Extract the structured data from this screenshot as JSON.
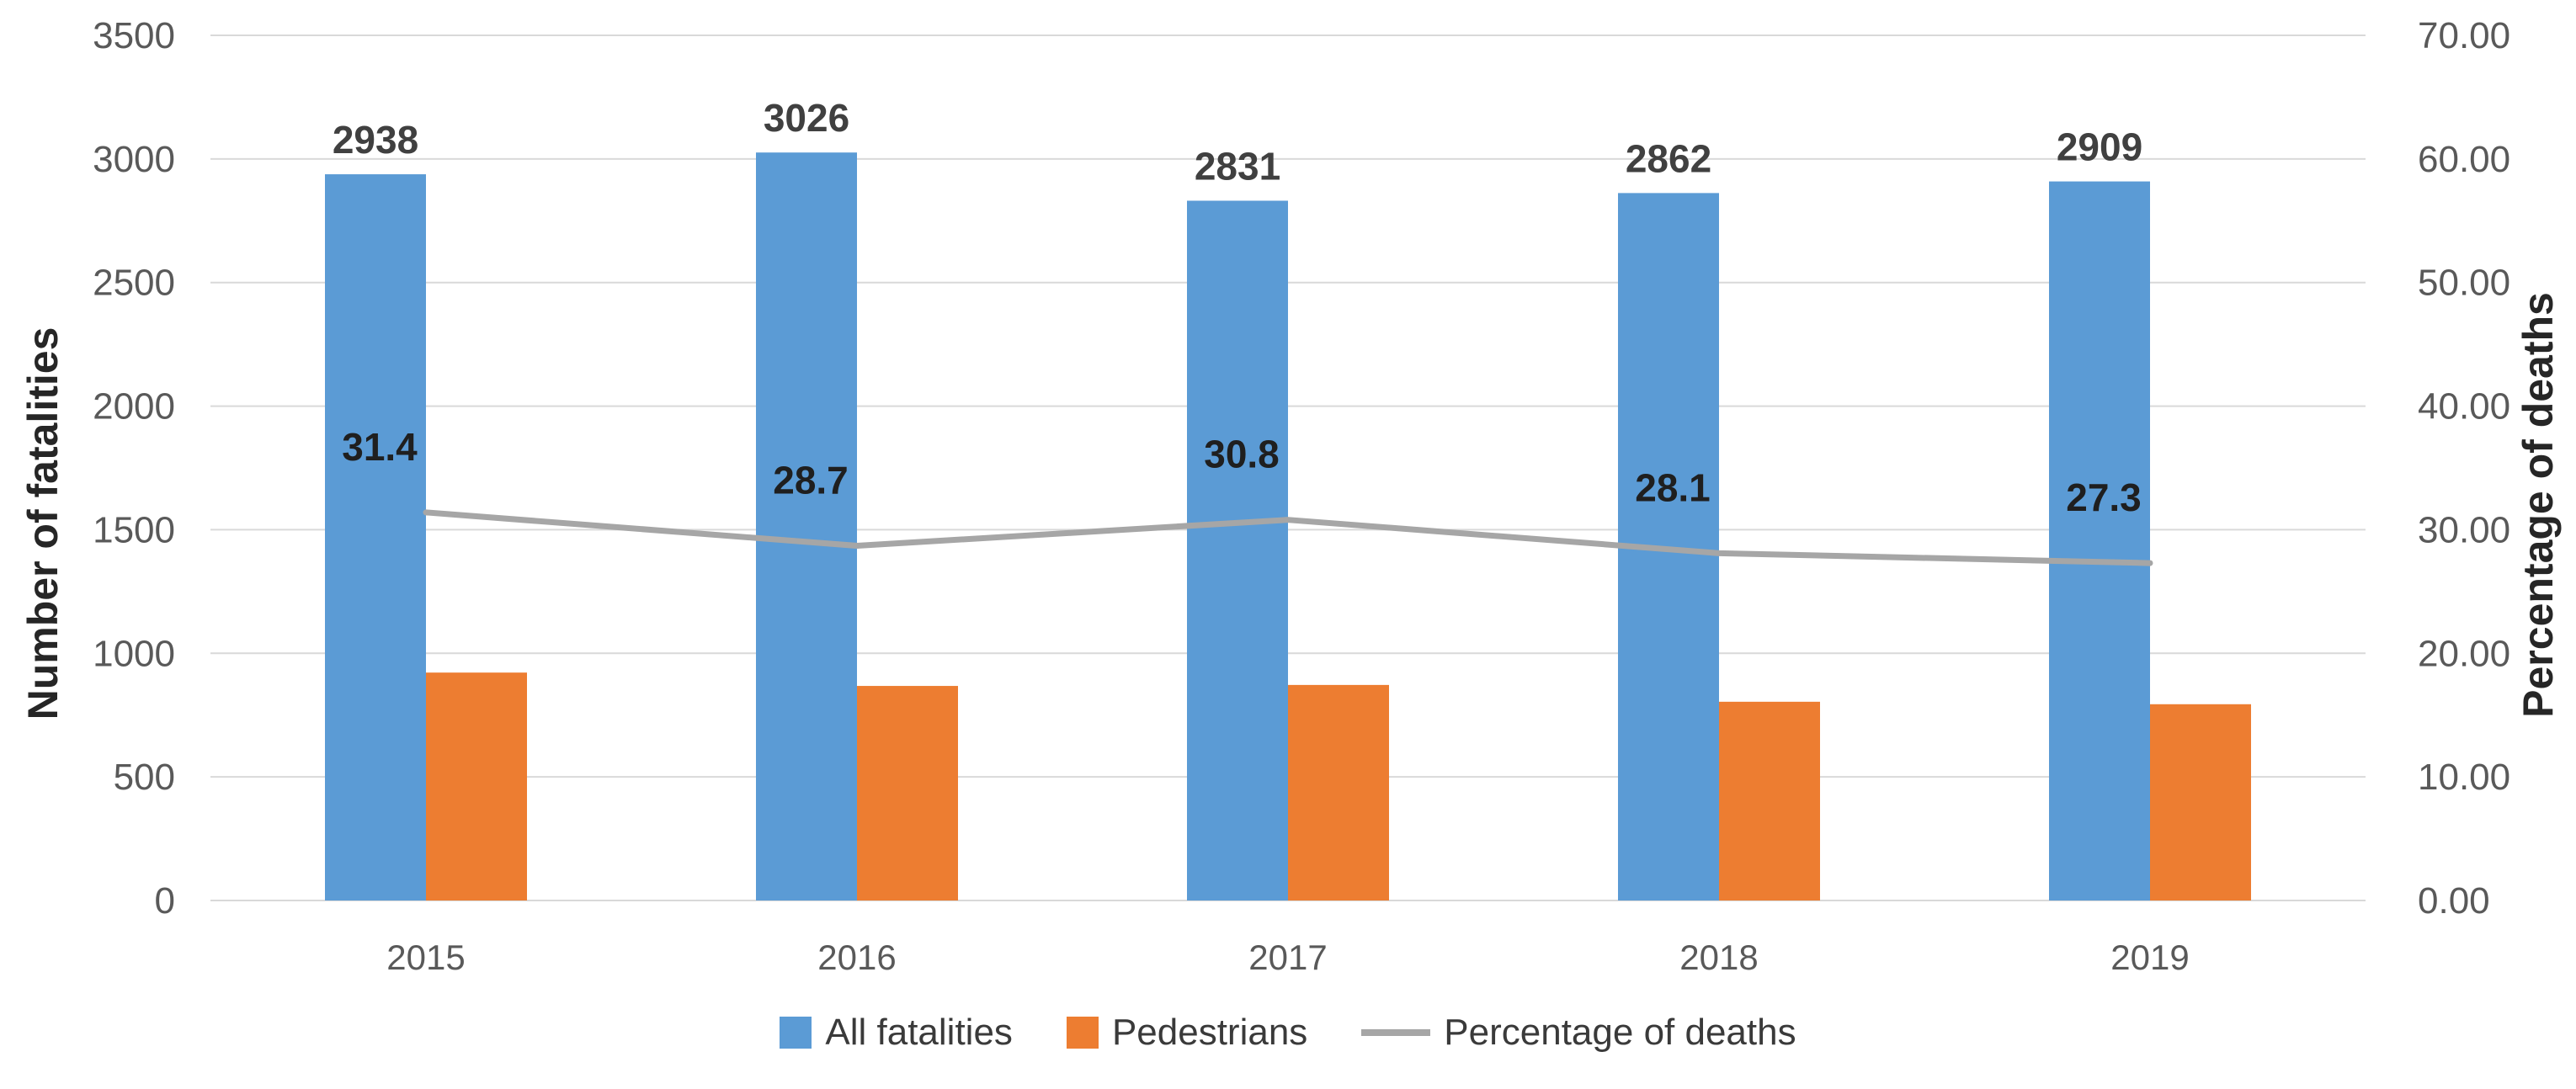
{
  "chart_data": {
    "type": "combo-bar-line",
    "categories": [
      "2015",
      "2016",
      "2017",
      "2018",
      "2019"
    ],
    "series": [
      {
        "name": "All fatalities",
        "type": "bar",
        "axis": "left",
        "color": "#5B9BD5",
        "values": [
          2938,
          3026,
          2831,
          2862,
          2909
        ],
        "labels": [
          "2938",
          "3026",
          "2831",
          "2862",
          "2909"
        ]
      },
      {
        "name": "Pedestrians",
        "type": "bar",
        "axis": "left",
        "color": "#ED7D31",
        "values": [
          922,
          868,
          872,
          804,
          794
        ],
        "labels": []
      },
      {
        "name": "Percentage of deaths",
        "type": "line",
        "axis": "right",
        "color": "#A6A6A6",
        "values": [
          31.4,
          28.7,
          30.8,
          28.1,
          27.3
        ],
        "labels": [
          "31.4",
          "28.7",
          "30.8",
          "28.1",
          "27.3"
        ]
      }
    ],
    "axes": {
      "left": {
        "label": "Number of fatalities",
        "min": 0,
        "max": 3500,
        "step": 500,
        "ticks": [
          "0",
          "500",
          "1000",
          "1500",
          "2000",
          "2500",
          "3000",
          "3500"
        ]
      },
      "right": {
        "label": "Percentage of deaths",
        "min": 0,
        "max": 70,
        "step": 10,
        "ticks": [
          "0.00",
          "10.00",
          "20.00",
          "30.00",
          "40.00",
          "50.00",
          "60.00",
          "70.00"
        ]
      }
    },
    "grid": true,
    "legend_position": "bottom",
    "colors": {
      "gridline": "#D9D9D9",
      "tick_text": "#595959",
      "bar_value_label": "#404040",
      "line_value_label": "#1f1f1f",
      "category_label": "#595959"
    }
  }
}
